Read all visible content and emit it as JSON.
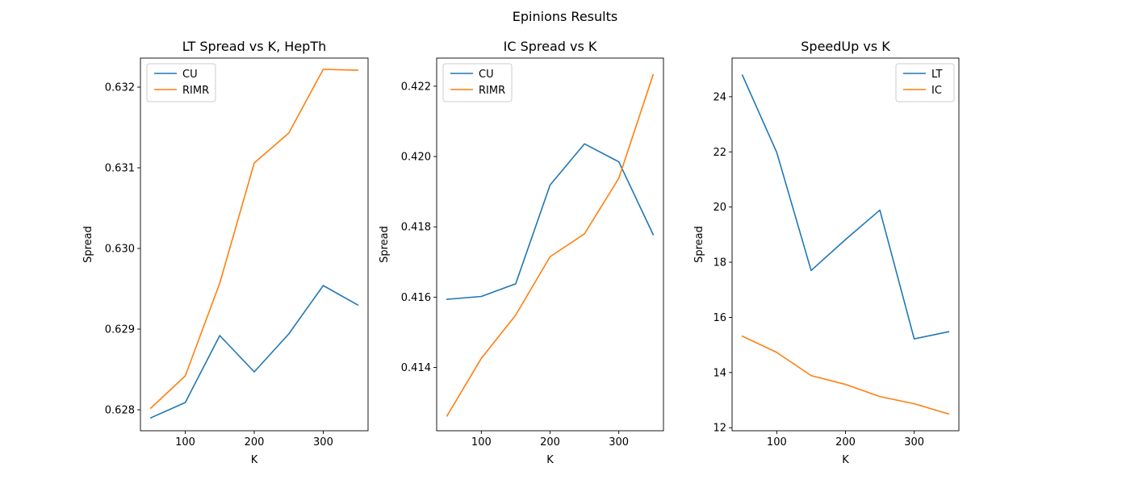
{
  "figure_title": "Epinions Results",
  "colors": {
    "blue": "#1f77b4",
    "orange": "#ff7f0e"
  },
  "chart_data": [
    {
      "type": "line",
      "title": "LT Spread vs K, HepTh",
      "xlabel": "K",
      "ylabel": "Spread",
      "x": [
        50,
        100,
        150,
        200,
        250,
        300,
        350
      ],
      "xticks": [
        100,
        200,
        300
      ],
      "xlim": [
        35,
        365
      ],
      "yticks": [
        0.628,
        0.629,
        0.63,
        0.631,
        0.632
      ],
      "ytick_labels": [
        "0.628",
        "0.629",
        "0.630",
        "0.631",
        "0.632"
      ],
      "ylim": [
        0.62774,
        0.63236
      ],
      "legend_position": "top-left",
      "series": [
        {
          "name": "CU",
          "color": "#1f77b4",
          "values": [
            0.6279,
            0.62809,
            0.62892,
            0.62847,
            0.62894,
            0.62954,
            0.6293
          ]
        },
        {
          "name": "RIMR",
          "color": "#ff7f0e",
          "values": [
            0.62802,
            0.62842,
            0.62957,
            0.63106,
            0.63143,
            0.63222,
            0.63221
          ]
        }
      ]
    },
    {
      "type": "line",
      "title": "IC Spread vs K",
      "xlabel": "K",
      "ylabel": "Spread",
      "x": [
        50,
        100,
        150,
        200,
        250,
        300,
        350
      ],
      "xticks": [
        100,
        200,
        300
      ],
      "xlim": [
        35,
        365
      ],
      "yticks": [
        0.414,
        0.416,
        0.418,
        0.42,
        0.422
      ],
      "ytick_labels": [
        "0.414",
        "0.416",
        "0.418",
        "0.420",
        "0.422"
      ],
      "ylim": [
        0.4122,
        0.4228
      ],
      "legend_position": "top-left",
      "series": [
        {
          "name": "CU",
          "color": "#1f77b4",
          "values": [
            0.41594,
            0.41602,
            0.41638,
            0.41919,
            0.42036,
            0.41985,
            0.41778
          ]
        },
        {
          "name": "RIMR",
          "color": "#ff7f0e",
          "values": [
            0.41262,
            0.41426,
            0.41549,
            0.41715,
            0.4178,
            0.41938,
            0.42233
          ]
        }
      ]
    },
    {
      "type": "line",
      "title": "SpeedUp vs K",
      "xlabel": "K",
      "ylabel": "Spread",
      "x": [
        50,
        100,
        150,
        200,
        250,
        300,
        350
      ],
      "xticks": [
        100,
        200,
        300
      ],
      "xlim": [
        35,
        365
      ],
      "yticks": [
        12,
        14,
        16,
        18,
        20,
        22,
        24
      ],
      "ytick_labels": [
        "12",
        "14",
        "16",
        "18",
        "20",
        "22",
        "24"
      ],
      "ylim": [
        11.89,
        25.4
      ],
      "legend_position": "top-right",
      "series": [
        {
          "name": "LT",
          "color": "#1f77b4",
          "values": [
            24.78,
            21.98,
            17.7,
            18.82,
            19.89,
            15.22,
            15.48
          ]
        },
        {
          "name": "IC",
          "color": "#ff7f0e",
          "values": [
            15.32,
            14.73,
            13.89,
            13.57,
            13.13,
            12.87,
            12.5
          ]
        }
      ]
    }
  ]
}
